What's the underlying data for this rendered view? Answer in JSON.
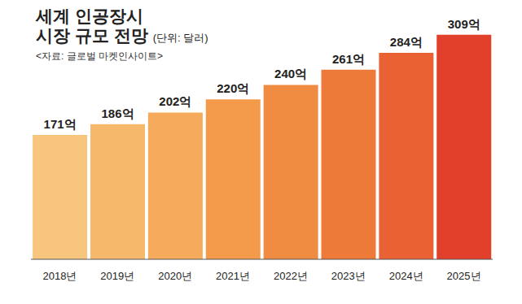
{
  "chart_data": {
    "type": "bar",
    "title": "세계 인공장시\n시장 규모 전망",
    "subtitle": "(단위: 달러)",
    "source": "<자료: 글로벌 마켓인사이트>",
    "categories": [
      "2018년",
      "2019년",
      "2020년",
      "2021년",
      "2022년",
      "2023년",
      "2024년",
      "2025년"
    ],
    "values": [
      171,
      186,
      202,
      220,
      240,
      261,
      284,
      309
    ],
    "value_labels": [
      "171억",
      "186억",
      "202억",
      "220억",
      "240억",
      "261억",
      "284억",
      "309억"
    ],
    "colors": [
      "#f8c57e",
      "#f6b96c",
      "#f5ab5b",
      "#f39b4b",
      "#f08b42",
      "#ee7a3a",
      "#ea6234",
      "#e2402a"
    ],
    "ylim": [
      0,
      340
    ],
    "data_labels": true,
    "tick_labels": "x",
    "grid": false
  }
}
